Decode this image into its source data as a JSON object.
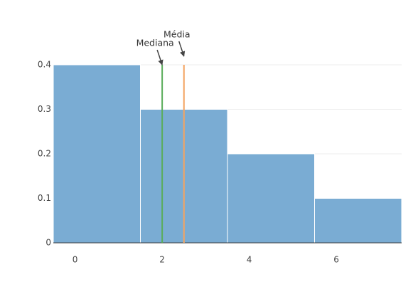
{
  "chart_data": {
    "type": "histogram",
    "bins": [
      -0.5,
      1.5,
      3.5,
      5.5,
      7.5
    ],
    "values": [
      0.4,
      0.3,
      0.2,
      0.1
    ],
    "color": "#7aacd3",
    "xlim": [
      -0.5,
      7.5
    ],
    "xticks": [
      0,
      2,
      4,
      6
    ],
    "ylim": [
      0,
      0.4
    ],
    "yticks": [
      0,
      0.1,
      0.2,
      0.3,
      0.4
    ],
    "grid": true,
    "lines": [
      {
        "label": "Mediana",
        "x": 2,
        "color": "#5aad5a"
      },
      {
        "label": "Média",
        "x": 2.5,
        "color": "#f4a460"
      }
    ]
  }
}
